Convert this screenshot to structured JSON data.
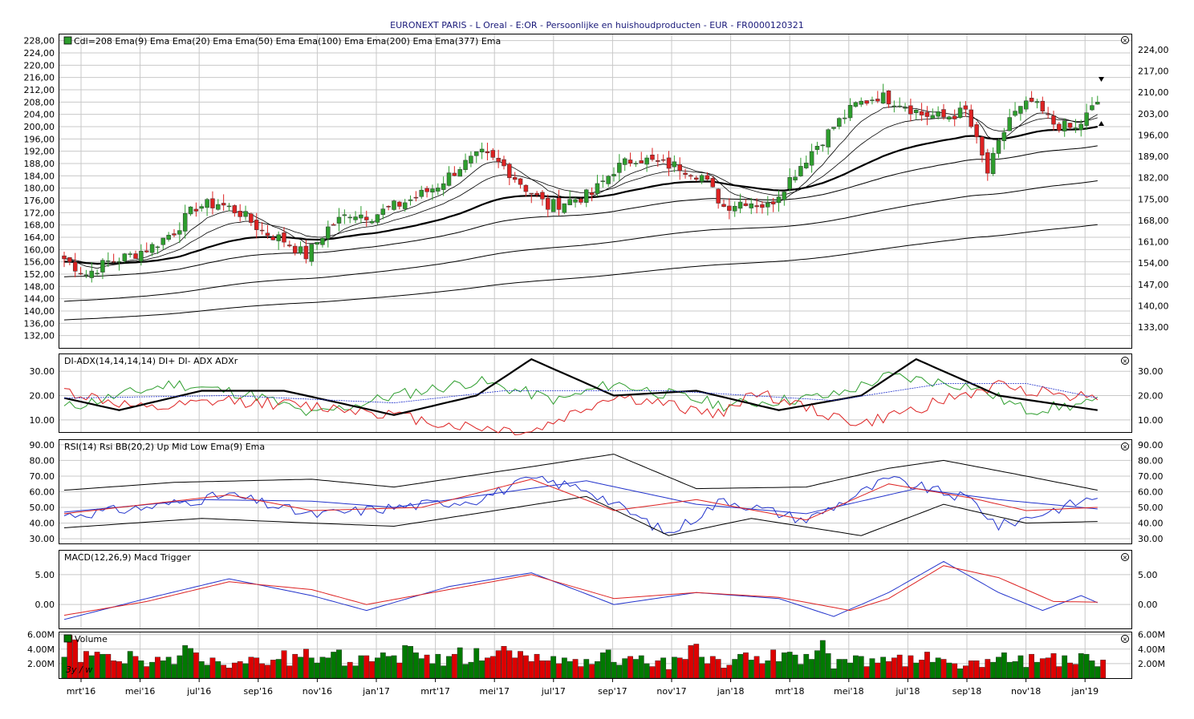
{
  "title": "EURONEXT PARIS - L Oreal - E:OR - Persoonlijke en huishoudproducten - EUR - FR0000120321",
  "colors": {
    "up": "#2e9e2e",
    "down": "#dd2222",
    "volume_up": "#007a00",
    "volume_down": "#dd0000",
    "dip": "#2e9e2e",
    "dim": "#dd2222",
    "adx": "#000000",
    "adxr": "#2233cc",
    "rsi": "#2233cc",
    "macd": "#2233cc",
    "trigger": "#dd2222",
    "grid": "#c8c8c8"
  },
  "x_labels": [
    "mrt'16",
    "mei'16",
    "jul'16",
    "sep'16",
    "nov'16",
    "jan'17",
    "mrt'17",
    "mei'17",
    "jul'17",
    "sep'17",
    "nov'17",
    "jan'18",
    "mrt'18",
    "mei'18",
    "jul'18",
    "sep'18",
    "nov'18",
    "jan'19"
  ],
  "panels": {
    "price": {
      "legend": [
        "Cdl=208",
        "Ema(9)",
        "Ema",
        "Ema(20)",
        "Ema",
        "Ema(50)",
        "Ema",
        "Ema(100)",
        "Ema",
        "Ema(200)",
        "Ema",
        "Ema(377)",
        "Ema"
      ],
      "left_ticks": [
        "228,00",
        "224,00",
        "220,00",
        "216,00",
        "212,00",
        "208,00",
        "204,00",
        "200,00",
        "196,00",
        "192,00",
        "188,00",
        "184,00",
        "180,00",
        "176,00",
        "172,00",
        "168,00",
        "164,00",
        "160,00",
        "156,00",
        "152,00",
        "148,00",
        "144,00",
        "140,00",
        "136,00",
        "132,00"
      ],
      "right_ticks": [
        "224,00",
        "217,00",
        "210,00",
        "203,00",
        "196,00",
        "189,00",
        "182,00",
        "175,00",
        "168,00",
        "161,00",
        "154,00",
        "147,00",
        "140,00",
        "133,00"
      ]
    },
    "adx": {
      "legend": [
        "DI-ADX(14,14,14,14)",
        "DI+",
        "DI-",
        "ADX",
        "ADXr"
      ],
      "ticks": [
        "30.00",
        "20.00",
        "10.00"
      ]
    },
    "rsi": {
      "legend": [
        "RSI(14)",
        "Rsi",
        "BB(20,2)",
        "Up",
        "Mid",
        "Low",
        "Ema(9)",
        "Ema"
      ],
      "ticks": [
        "90.00",
        "80.00",
        "70.00",
        "60.00",
        "50.00",
        "40.00",
        "30.00"
      ]
    },
    "macd": {
      "legend": [
        "MACD(12,26,9)",
        "Macd",
        "Trigger"
      ],
      "ticks": [
        "5.00",
        "0.00"
      ]
    },
    "volume": {
      "legend": [
        "Volume"
      ],
      "ticks": [
        "6.00M",
        "4.00M",
        "2.00M"
      ],
      "period_label": "3y / w"
    }
  },
  "chart_data": [
    {
      "type": "candlestick",
      "title": "EURONEXT PARIS - L Oreal - E:OR - Persoonlijke en huishoudproducten - EUR - FR0000120321",
      "x_labels": [
        "mrt'16",
        "mei'16",
        "jul'16",
        "sep'16",
        "nov'16",
        "jan'17",
        "mrt'17",
        "mei'17",
        "jul'17",
        "sep'17",
        "nov'17",
        "jan'18",
        "mrt'18",
        "mei'18",
        "jul'18",
        "sep'18",
        "nov'18",
        "jan'19"
      ],
      "ylim": [
        128,
        230
      ],
      "close_anchors": [
        [
          0,
          157
        ],
        [
          4,
          152
        ],
        [
          8,
          156
        ],
        [
          12,
          158
        ],
        [
          16,
          161
        ],
        [
          20,
          166
        ],
        [
          24,
          174
        ],
        [
          28,
          175
        ],
        [
          32,
          172
        ],
        [
          36,
          166
        ],
        [
          40,
          163
        ],
        [
          44,
          158
        ],
        [
          48,
          167
        ],
        [
          52,
          172
        ],
        [
          56,
          171
        ],
        [
          60,
          174
        ],
        [
          64,
          177
        ],
        [
          68,
          181
        ],
        [
          72,
          187
        ],
        [
          76,
          191
        ],
        [
          80,
          187
        ],
        [
          84,
          180
        ],
        [
          88,
          174
        ],
        [
          92,
          176
        ],
        [
          96,
          178
        ],
        [
          100,
          186
        ],
        [
          104,
          190
        ],
        [
          108,
          188
        ],
        [
          112,
          187
        ],
        [
          116,
          184
        ],
        [
          120,
          174
        ],
        [
          124,
          176
        ],
        [
          128,
          174
        ],
        [
          132,
          183
        ],
        [
          136,
          192
        ],
        [
          140,
          200
        ],
        [
          144,
          207
        ],
        [
          148,
          210
        ],
        [
          152,
          208
        ],
        [
          156,
          204
        ],
        [
          160,
          203
        ],
        [
          164,
          205
        ],
        [
          168,
          185
        ],
        [
          172,
          203
        ],
        [
          176,
          208
        ],
        [
          180,
          201
        ],
        [
          184,
          199
        ],
        [
          188,
          208
        ]
      ],
      "series": [
        {
          "name": "Ema(9)"
        },
        {
          "name": "Ema(20)"
        },
        {
          "name": "Ema(50)"
        },
        {
          "name": "Ema(100)"
        },
        {
          "name": "Ema(200)"
        },
        {
          "name": "Ema(377)"
        }
      ]
    },
    {
      "type": "line",
      "legend": [
        "DI+",
        "DI-",
        "ADX",
        "ADXr"
      ],
      "ylim": [
        5,
        37
      ],
      "series": [
        {
          "name": "DI+",
          "anchors": [
            [
              0,
              15
            ],
            [
              20,
              25
            ],
            [
              35,
              20
            ],
            [
              45,
              12
            ],
            [
              60,
              20
            ],
            [
              75,
              26
            ],
            [
              90,
              18
            ],
            [
              100,
              25
            ],
            [
              120,
              16
            ],
            [
              140,
              20
            ],
            [
              150,
              28
            ],
            [
              165,
              24
            ],
            [
              175,
              14
            ],
            [
              188,
              17
            ]
          ]
        },
        {
          "name": "DI-",
          "anchors": [
            [
              0,
              22
            ],
            [
              15,
              14
            ],
            [
              30,
              18
            ],
            [
              55,
              14
            ],
            [
              70,
              8
            ],
            [
              85,
              5
            ],
            [
              100,
              20
            ],
            [
              120,
              12
            ],
            [
              125,
              22
            ],
            [
              145,
              8
            ],
            [
              160,
              18
            ],
            [
              170,
              24
            ],
            [
              188,
              19
            ]
          ]
        },
        {
          "name": "ADX",
          "anchors": [
            [
              0,
              19
            ],
            [
              10,
              14
            ],
            [
              25,
              22
            ],
            [
              40,
              22
            ],
            [
              60,
              12
            ],
            [
              75,
              20
            ],
            [
              85,
              35
            ],
            [
              100,
              20
            ],
            [
              115,
              22
            ],
            [
              130,
              14
            ],
            [
              145,
              20
            ],
            [
              155,
              35
            ],
            [
              170,
              20
            ],
            [
              188,
              14
            ]
          ]
        },
        {
          "name": "ADXr",
          "anchors": [
            [
              0,
              19
            ],
            [
              30,
              20
            ],
            [
              60,
              17
            ],
            [
              80,
              22
            ],
            [
              110,
              22
            ],
            [
              140,
              18
            ],
            [
              160,
              25
            ],
            [
              175,
              25
            ],
            [
              188,
              19
            ]
          ]
        }
      ]
    },
    {
      "type": "line",
      "legend": [
        "Rsi",
        "Up",
        "Mid",
        "Low",
        "Ema(9)"
      ],
      "ylim": [
        27,
        93
      ],
      "series": [
        {
          "name": "Rsi",
          "anchors": [
            [
              0,
              45
            ],
            [
              15,
              50
            ],
            [
              30,
              58
            ],
            [
              45,
              45
            ],
            [
              60,
              50
            ],
            [
              75,
              55
            ],
            [
              85,
              68
            ],
            [
              95,
              62
            ],
            [
              110,
              33
            ],
            [
              120,
              55
            ],
            [
              135,
              42
            ],
            [
              150,
              68
            ],
            [
              165,
              55
            ],
            [
              170,
              38
            ],
            [
              188,
              57
            ]
          ]
        },
        {
          "name": "Up",
          "anchors": [
            [
              0,
              61
            ],
            [
              20,
              66
            ],
            [
              45,
              68
            ],
            [
              60,
              63
            ],
            [
              85,
              76
            ],
            [
              100,
              84
            ],
            [
              115,
              62
            ],
            [
              135,
              63
            ],
            [
              150,
              75
            ],
            [
              160,
              80
            ],
            [
              175,
              70
            ],
            [
              188,
              61
            ]
          ]
        },
        {
          "name": "Mid",
          "anchors": [
            [
              0,
              47
            ],
            [
              25,
              55
            ],
            [
              45,
              54
            ],
            [
              60,
              50
            ],
            [
              95,
              67
            ],
            [
              115,
              52
            ],
            [
              135,
              46
            ],
            [
              155,
              62
            ],
            [
              170,
              55
            ],
            [
              188,
              49
            ]
          ]
        },
        {
          "name": "Low",
          "anchors": [
            [
              0,
              37
            ],
            [
              25,
              43
            ],
            [
              45,
              40
            ],
            [
              60,
              38
            ],
            [
              95,
              57
            ],
            [
              110,
              32
            ],
            [
              125,
              43
            ],
            [
              145,
              32
            ],
            [
              160,
              52
            ],
            [
              175,
              40
            ],
            [
              188,
              41
            ]
          ]
        },
        {
          "name": "Ema(9)",
          "anchors": [
            [
              0,
              46
            ],
            [
              30,
              58
            ],
            [
              45,
              48
            ],
            [
              65,
              50
            ],
            [
              85,
              68
            ],
            [
              100,
              48
            ],
            [
              115,
              55
            ],
            [
              135,
              42
            ],
            [
              150,
              65
            ],
            [
              165,
              56
            ],
            [
              175,
              48
            ],
            [
              188,
              50
            ]
          ]
        }
      ]
    },
    {
      "type": "line",
      "legend": [
        "Macd",
        "Trigger"
      ],
      "ylim": [
        -4,
        9
      ],
      "series": [
        {
          "name": "Macd",
          "anchors": [
            [
              0,
              -2.5
            ],
            [
              15,
              1.0
            ],
            [
              30,
              4.3
            ],
            [
              45,
              1.5
            ],
            [
              55,
              -1.0
            ],
            [
              70,
              3.0
            ],
            [
              85,
              5.3
            ],
            [
              100,
              0.0
            ],
            [
              115,
              2.0
            ],
            [
              130,
              1.0
            ],
            [
              140,
              -2.0
            ],
            [
              150,
              2.0
            ],
            [
              160,
              7.2
            ],
            [
              170,
              2.0
            ],
            [
              178,
              -1.0
            ],
            [
              185,
              1.5
            ],
            [
              188,
              0.3
            ]
          ]
        },
        {
          "name": "Trigger",
          "anchors": [
            [
              0,
              -1.8
            ],
            [
              15,
              0.5
            ],
            [
              30,
              3.8
            ],
            [
              45,
              2.5
            ],
            [
              55,
              0.0
            ],
            [
              70,
              2.5
            ],
            [
              85,
              5.0
            ],
            [
              100,
              1.0
            ],
            [
              115,
              2.0
            ],
            [
              130,
              1.2
            ],
            [
              143,
              -1.0
            ],
            [
              150,
              1.0
            ],
            [
              160,
              6.5
            ],
            [
              170,
              4.5
            ],
            [
              180,
              0.5
            ],
            [
              188,
              0.4
            ]
          ]
        }
      ]
    },
    {
      "type": "bar",
      "legend": [
        "Volume"
      ],
      "ylim": [
        0,
        6.3
      ],
      "unit": "M",
      "values": [
        2.9,
        5.9,
        5.3,
        2.2,
        3.7,
        3.1,
        3.6,
        3.3,
        3.3,
        2.4,
        2.3,
        2.0,
        3.7,
        3.0,
        2.4,
        1.6,
        2.2,
        2.9,
        2.4,
        2.9,
        1.9,
        3.1,
        4.5,
        4.1,
        3.5,
        2.3,
        1.8,
        2.8,
        2.3,
        1.8,
        1.4,
        2.1,
        2.3,
        2.0,
        2.9,
        2.8,
        2.0,
        1.8,
        2.5,
        2.6,
        3.8,
        1.7,
        3.3,
        2.9,
        4.0,
        2.8,
        2.1,
        2.9,
        2.8,
        3.6,
        3.9,
        1.7,
        2.2,
        1.7,
        3.1,
        3.1,
        2.3,
        2.8,
        3.5,
        3.0,
        3.1,
        2.1,
        4.5,
        4.4,
        3.5,
        2.7,
        3.2,
        2.0,
        3.3,
        1.7,
        3.0,
        3.3,
        4.2,
        1.9,
        2.2,
        4.1,
        2.4,
        2.8,
        3.0,
        3.8,
        4.4,
        3.8,
        2.8,
        3.7,
        3.1,
        2.3,
        3.3,
        2.4,
        2.4,
        3.0,
        2.0,
        2.8,
        2.3,
        2.6,
        1.6,
        2.6,
        1.9,
        2.3,
        3.5,
        3.9,
        2.2,
        1.8,
        2.7,
        3.0,
        2.6,
        3.1,
        2.0,
        1.6,
        2.4,
        2.8,
        1.2,
        2.9,
        2.8,
        2.6,
        4.5,
        4.7,
        2.9,
        2.0,
        3.0,
        2.6,
        1.4,
        1.8,
        2.6,
        3.3,
        3.5,
        2.5,
        3.0,
        2.0,
        2.4,
        3.9,
        2.3,
        3.5,
        3.6,
        3.2,
        1.9,
        3.3,
        2.6,
        3.8,
        5.2,
        3.4,
        1.3,
        2.6,
        2.6,
        2.1,
        3.1,
        3.0,
        1.6,
        2.7,
        2.1,
        2.9,
        2.3,
        2.8,
        3.2,
        1.6,
        3.1,
        2.1,
        2.5,
        3.6,
        2.2,
        2.8,
        2.6,
        2.1,
        2.0,
        1.3,
        1.7,
        2.4,
        2.4,
        1.5,
        2.6,
        2.2,
        2.9,
        3.5,
        2.2,
        2.3,
        3.1,
        1.5,
        3.3,
        2.2,
        2.7,
        2.8,
        3.4,
        1.6,
        3.1,
        2.1,
        1.9,
        3.4,
        3.3,
        2.4,
        1.6,
        2.5
      ]
    }
  ]
}
